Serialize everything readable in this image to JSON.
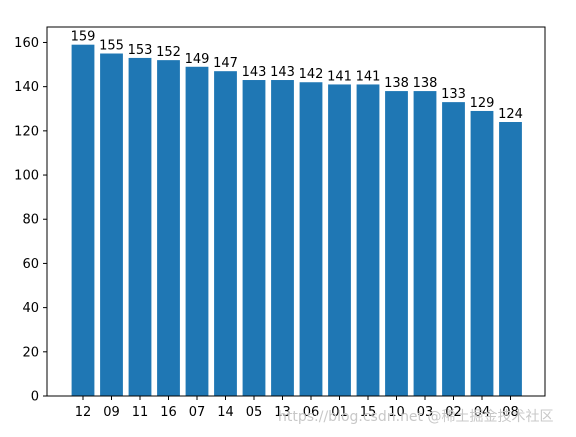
{
  "chart_data": {
    "type": "bar",
    "categories": [
      "12",
      "09",
      "11",
      "16",
      "07",
      "14",
      "05",
      "13",
      "06",
      "01",
      "15",
      "10",
      "03",
      "02",
      "04",
      "08"
    ],
    "values": [
      159,
      155,
      153,
      152,
      149,
      147,
      143,
      143,
      142,
      141,
      141,
      138,
      138,
      133,
      129,
      124
    ],
    "ylim": [
      0,
      167
    ],
    "yticks": [
      0,
      20,
      40,
      60,
      80,
      100,
      120,
      140,
      160
    ],
    "bar_color": "#1f77b4",
    "grid": false,
    "title": "",
    "xlabel": "",
    "ylabel": ""
  },
  "watermark": "https://blog.csdn.net @稀土掘金技术社区"
}
